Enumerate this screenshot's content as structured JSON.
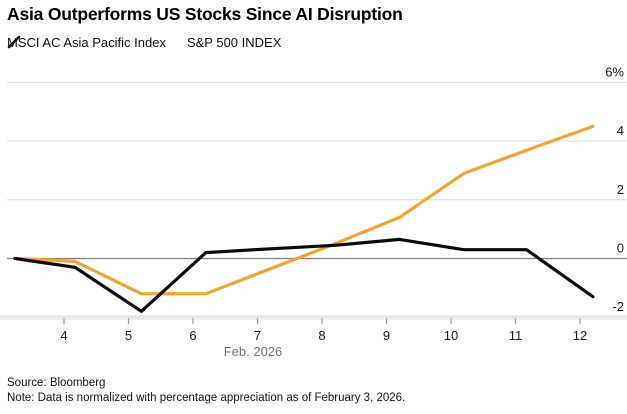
{
  "title": "Asia Outperforms US Stocks Since AI Disruption",
  "legend": [
    {
      "label": "MSCI AC Asia Pacific Index",
      "color": "#F5A333",
      "marker": "slash-icon"
    },
    {
      "label": "S&P 500 INDEX",
      "color": "#0A0A0A",
      "marker": "slash-icon"
    }
  ],
  "footer": {
    "source": "Source: Bloomberg",
    "note": "Note: Data is normalized with percentage appreciation as of February 3, 2026."
  },
  "chart_data": {
    "type": "line",
    "title": "Asia Outperforms US Stocks Since AI Disruption",
    "xlabel": "Feb. 2026",
    "ylabel": "",
    "unit": "%",
    "grid": true,
    "legend_position": "top-left",
    "xlim": [
      3.2,
      12.5
    ],
    "ylim": [
      -2.2,
      6.4
    ],
    "x_ticks": [
      4,
      5,
      6,
      7,
      8,
      9,
      10,
      11,
      12
    ],
    "y_ticks": [
      {
        "value": 6,
        "label": "6%"
      },
      {
        "value": 4,
        "label": "4"
      },
      {
        "value": 2,
        "label": "2"
      },
      {
        "value": 0,
        "label": "0"
      },
      {
        "value": -2,
        "label": "-2"
      }
    ],
    "series": [
      {
        "name": "MSCI AC Asia Pacific Index",
        "color": "#F5A333",
        "x": [
          3.24,
          4.17,
          5.2,
          6.2,
          7.2,
          8.2,
          9.2,
          10.2,
          11.25,
          12.2
        ],
        "y": [
          0,
          -0.1,
          -1.2,
          -1.2,
          -0.35,
          0.5,
          1.4,
          2.9,
          3.75,
          4.5
        ]
      },
      {
        "name": "S&P 500 INDEX",
        "color": "#0A0A0A",
        "x": [
          3.24,
          4.17,
          5.2,
          6.2,
          7.2,
          8.2,
          9.2,
          10.2,
          11.17,
          12.2
        ],
        "y": [
          0,
          -0.3,
          -1.8,
          0.2,
          0.33,
          0.45,
          0.65,
          0.3,
          0.3,
          -1.3
        ]
      }
    ],
    "colors": {
      "gridline": "#dcdcdc",
      "zero_line": "#808080",
      "axis_band": "#e8e8e8",
      "tick_mark": "#9b9b9b",
      "xlabel_text": "#777777",
      "tick_text": "#1a1a1a"
    }
  }
}
